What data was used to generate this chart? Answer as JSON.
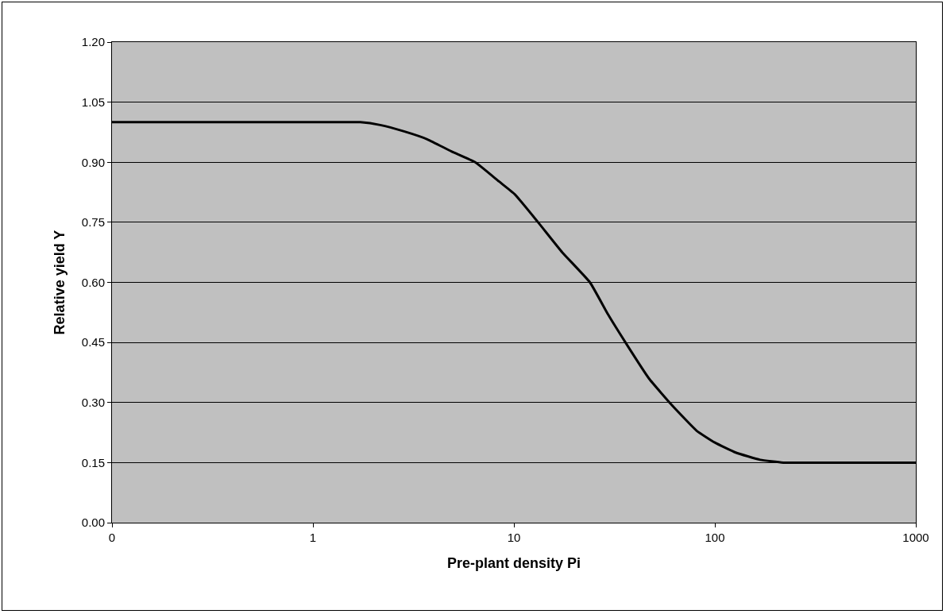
{
  "chart_data": {
    "type": "line",
    "xlabel": "Pre-plant density Pi",
    "ylabel": "Relative yield Y",
    "x": [
      0.1,
      0.5,
      1,
      1.72,
      2.16,
      2.84,
      3.72,
      4.89,
      6.42,
      8.43,
      10.1,
      13.2,
      17.4,
      23.9,
      29.4,
      35.9,
      47,
      62,
      81,
      100,
      127,
      168,
      219,
      500,
      1000
    ],
    "series": [
      {
        "color": "#000000",
        "values": [
          1.0,
          1.0,
          1.0,
          1.0,
          0.993,
          0.977,
          0.957,
          0.927,
          0.9,
          0.852,
          0.82,
          0.75,
          0.675,
          0.6,
          0.52,
          0.45,
          0.36,
          0.29,
          0.23,
          0.2,
          0.175,
          0.157,
          0.15,
          0.15,
          0.15
        ]
      }
    ],
    "log": "x",
    "xlim": [
      0.1,
      1000
    ],
    "xticks": [
      {
        "value": 0.1,
        "label": "0"
      },
      1,
      10,
      100,
      1000
    ],
    "ylim": [
      0,
      1.2
    ],
    "yticks": [
      {
        "value": 0,
        "label": "0.00"
      },
      {
        "value": 0.15,
        "label": "0.15"
      },
      {
        "value": 0.3,
        "label": "0.30"
      },
      {
        "value": 0.45,
        "label": "0.45"
      },
      {
        "value": 0.6,
        "label": "0.60"
      },
      {
        "value": 0.75,
        "label": "0.75"
      },
      {
        "value": 0.9,
        "label": "0.90"
      },
      {
        "value": 1.05,
        "label": "1.05"
      },
      {
        "value": 1.2,
        "label": "1.20"
      }
    ],
    "grid": "y",
    "marker": "none",
    "line_style": "solid"
  }
}
